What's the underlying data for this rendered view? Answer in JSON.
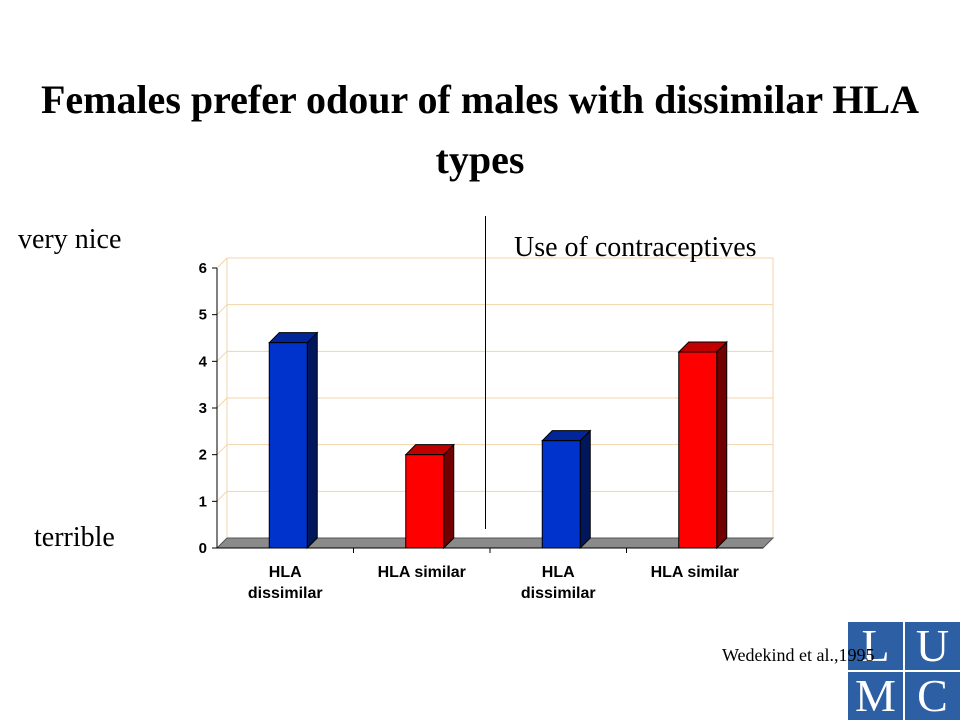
{
  "slide": {
    "title": "Females prefer odour of males with dissimilar HLA types",
    "scale_top_label": "very nice",
    "scale_bottom_label": "terrible",
    "condition_label": "Use of contraceptives",
    "citation": "Wedekind et al.,1995"
  },
  "logo": {
    "letters": [
      "L",
      "U",
      "M",
      "C"
    ],
    "color": "#2c5fa3"
  },
  "chart_data": {
    "type": "bar",
    "categories": [
      [
        "HLA",
        "dissimilar"
      ],
      [
        "HLA similar"
      ],
      [
        "HLA",
        "dissimilar"
      ],
      [
        "HLA similar"
      ]
    ],
    "values": [
      4.4,
      2.0,
      2.3,
      4.2
    ],
    "bar_colors": [
      "#0033cc",
      "#ff0000",
      "#0033cc",
      "#ff0000"
    ],
    "ylim": [
      0,
      6
    ],
    "yticks": [
      0,
      1,
      2,
      3,
      4,
      5,
      6
    ],
    "grid": true,
    "gridline_color": "#f2d4a8",
    "floor_color": "#8a8a8a",
    "style": "3d-column"
  }
}
